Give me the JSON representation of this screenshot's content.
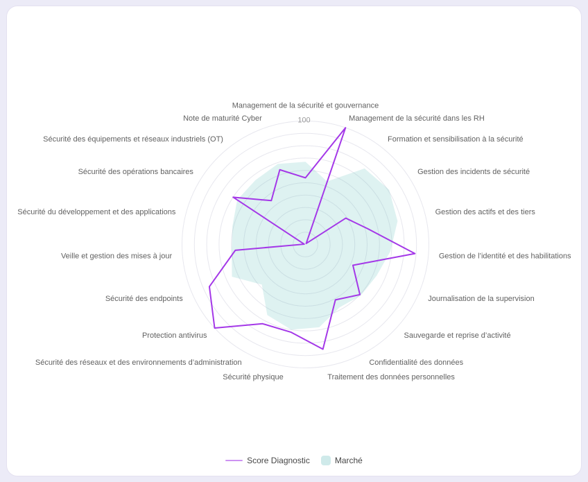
{
  "page": {
    "background_color": "#ecebf7",
    "card_color": "#ffffff"
  },
  "chart_data": {
    "type": "radar",
    "max": 100,
    "rings": 10,
    "grid": "circular",
    "grid_color": "#e7e7ee",
    "max_tick_label": "100",
    "tick_color": "#999999",
    "axis_label_color": "#616161",
    "legend_position": "bottom",
    "axes": [
      "Management de la sécurité et gouvernance",
      "Management de la sécurité dans les RH",
      "Formation et sensibilisation à la sécurité",
      "Gestion des incidents de sécurité",
      "Gestion des actifs et des tiers",
      "Gestion de l’identité et des habilitations",
      "Journalisation de la supervision",
      "Sauvegarde et reprise d’activité",
      "Confidentialité des données",
      "Traitement des données personnelles",
      "Sécurité physique",
      "Sécurité des réseaux et des environnements d’administration",
      "Protection antivirus",
      "Sécurité des endpoints",
      "Veille et gestion des mises à jour",
      "Sécurité du développement et des applications",
      "Sécurité des opérations bancaires",
      "Sécurité des équipements et réseaux industriels (OT)",
      "Note de maturité Cyber"
    ],
    "series": [
      {
        "name": "Score Diagnostic",
        "color": "#a438e8",
        "fill": "none",
        "values": [
          54,
          100,
          1,
          39,
          52,
          89,
          42,
          60,
          51,
          86,
          72,
          73,
          100,
          85,
          57,
          1,
          70,
          45,
          64
        ]
      },
      {
        "name": "Marché",
        "color": "#cfeaea",
        "fill": "rgba(103,196,190,0.22)",
        "values": [
          67,
          54,
          78,
          81,
          77,
          69,
          63,
          61,
          58,
          68,
          70,
          65,
          48,
          65,
          60,
          61,
          66,
          66,
          69
        ]
      }
    ]
  }
}
